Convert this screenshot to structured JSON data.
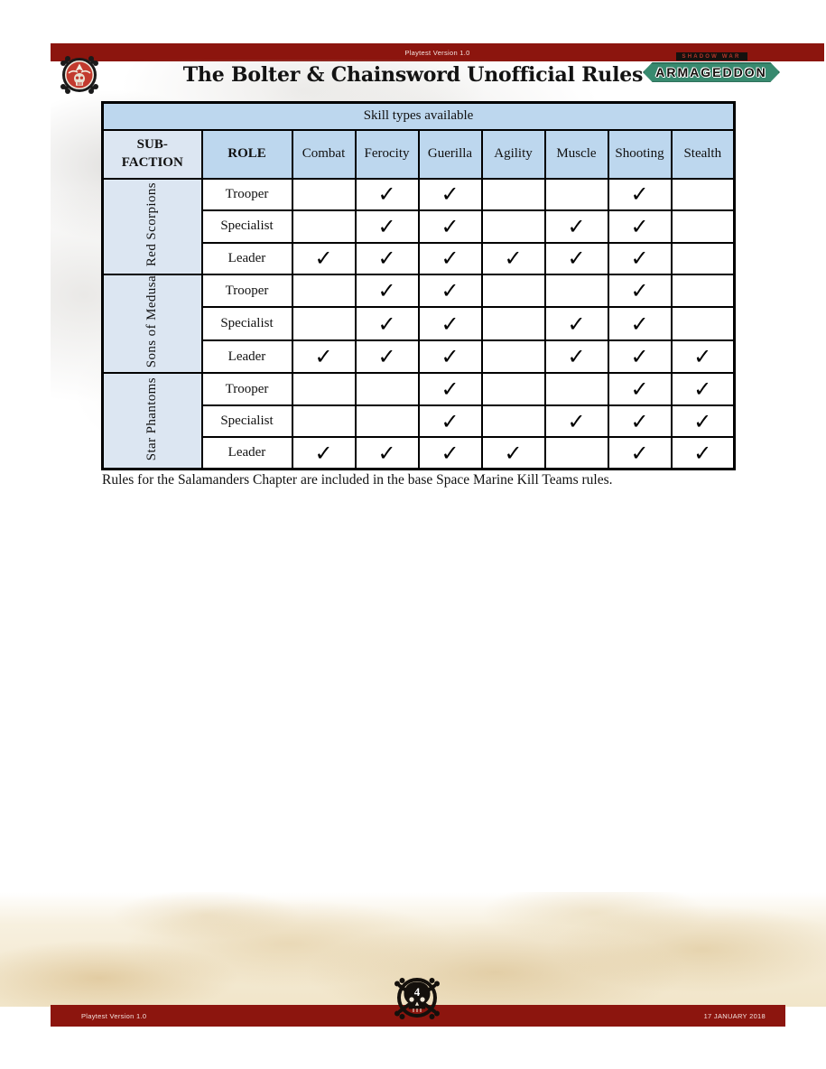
{
  "top_bar": {
    "text": "Playtest Version 1.0"
  },
  "header": {
    "title": "The Bolter & Chainsword Unofficial Rules",
    "logo": {
      "top": "SHADOW WAR",
      "main": "ARMAGEDDON"
    }
  },
  "table": {
    "title": "Skill types available",
    "corner_header": "SUB-FACTION",
    "role_header": "ROLE",
    "skill_columns": [
      "Combat",
      "Ferocity",
      "Guerilla",
      "Agility",
      "Muscle",
      "Shooting",
      "Stealth"
    ],
    "check_glyph": "✓",
    "groups": [
      {
        "faction": "Red Scorpions",
        "rows": [
          {
            "role": "Trooper",
            "checks": [
              false,
              true,
              true,
              false,
              false,
              true,
              false
            ]
          },
          {
            "role": "Specialist",
            "checks": [
              false,
              true,
              true,
              false,
              true,
              true,
              false
            ]
          },
          {
            "role": "Leader",
            "checks": [
              true,
              true,
              true,
              true,
              true,
              true,
              false
            ]
          }
        ]
      },
      {
        "faction": "Sons of Medusa",
        "rows": [
          {
            "role": "Trooper",
            "checks": [
              false,
              true,
              true,
              false,
              false,
              true,
              false
            ]
          },
          {
            "role": "Specialist",
            "checks": [
              false,
              true,
              true,
              false,
              true,
              true,
              false
            ]
          },
          {
            "role": "Leader",
            "checks": [
              true,
              true,
              true,
              false,
              true,
              true,
              true
            ]
          }
        ]
      },
      {
        "faction": "Star Phantoms",
        "rows": [
          {
            "role": "Trooper",
            "checks": [
              false,
              false,
              true,
              false,
              false,
              true,
              true
            ]
          },
          {
            "role": "Specialist",
            "checks": [
              false,
              false,
              true,
              false,
              true,
              true,
              true
            ]
          },
          {
            "role": "Leader",
            "checks": [
              true,
              true,
              true,
              true,
              false,
              true,
              true
            ]
          }
        ]
      }
    ]
  },
  "note": "Rules for the Salamanders Chapter are included in the base Space Marine Kill Teams rules.",
  "footer": {
    "left_text": "Playtest Version 1.0",
    "right_text": "17 JANUARY 2018",
    "page_number": "4"
  },
  "colors": {
    "bar_red": "#8c150e",
    "header_blue": "#bdd7ee",
    "light_blue": "#dce6f2",
    "logo_green": "#388a6f",
    "check_black": "#000000"
  }
}
